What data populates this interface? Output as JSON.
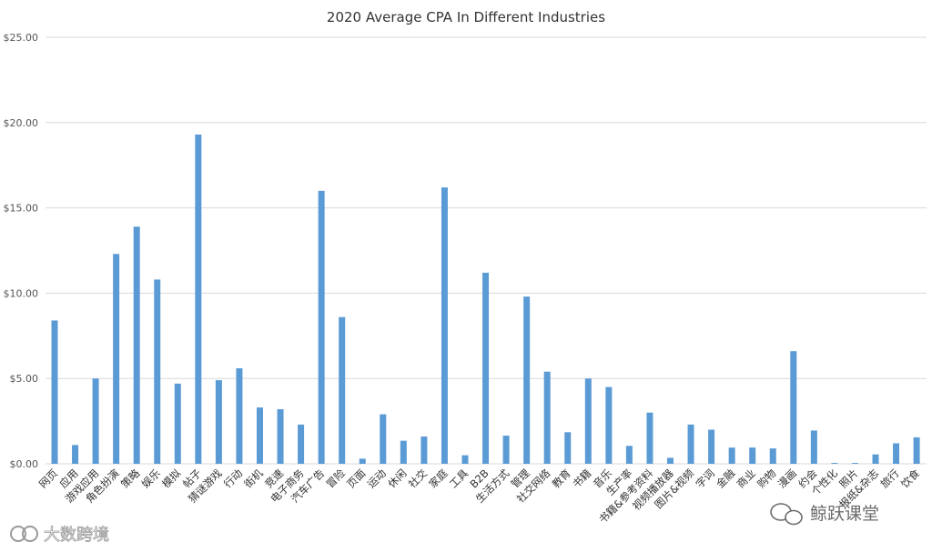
{
  "chart_data": {
    "type": "bar",
    "title": "2020 Average CPA In Different Industries",
    "xlabel": "",
    "ylabel": "",
    "ylim": [
      0,
      25
    ],
    "yticks": [
      "$0.00",
      "$5.00",
      "$10.00",
      "$15.00",
      "$20.00",
      "$25.00"
    ],
    "ytick_values": [
      0,
      5,
      10,
      15,
      20,
      25
    ],
    "grid": true,
    "bar_color": "#5b9bd5",
    "categories": [
      "网页",
      "应用",
      "游戏应用",
      "角色扮演",
      "策略",
      "娱乐",
      "模拟",
      "帖子",
      "猜谜游戏",
      "行动",
      "街机",
      "竞速",
      "电子商务",
      "汽车广告",
      "冒险",
      "页面",
      "运动",
      "休闲",
      "社交",
      "家庭",
      "工具",
      "B2B",
      "生活方式",
      "管理",
      "社交网络",
      "教育",
      "书籍",
      "音乐",
      "生产率",
      "书籍&参考资料",
      "视频播放器",
      "图片&视频",
      "字词",
      "金融",
      "商业",
      "购物",
      "漫画",
      "约会",
      "个性化",
      "照片",
      "报纸&杂志",
      "旅行",
      "饮食"
    ],
    "values": [
      8.4,
      1.1,
      5.0,
      12.3,
      13.9,
      10.8,
      4.7,
      19.3,
      4.9,
      5.6,
      3.3,
      3.2,
      2.3,
      16.0,
      8.6,
      0.3,
      2.9,
      1.35,
      1.6,
      16.2,
      0.5,
      11.2,
      1.65,
      9.8,
      5.4,
      1.85,
      5.0,
      4.5,
      1.05,
      3.0,
      0.35,
      2.3,
      2.0,
      0.95,
      0.95,
      0.9,
      6.6,
      1.95,
      0.05,
      0.05,
      0.55,
      1.2,
      1.55
    ]
  },
  "watermarks": {
    "left": "大数跨境",
    "right": "鲸跃课堂"
  }
}
